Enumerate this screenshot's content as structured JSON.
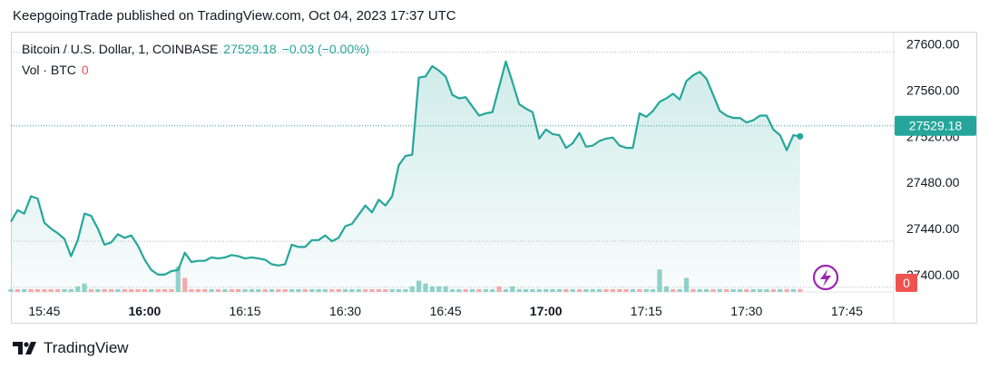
{
  "header": {
    "publisher": "KeepgoingTrade published on TradingView.com, Oct 04, 2023 17:37 UTC"
  },
  "legend": {
    "symbol": "Bitcoin / U.S. Dollar, 1, COINBASE",
    "last": "27529.18",
    "change": "−0.03 (−0.00%)",
    "vol_label": "Vol · BTC",
    "vol_value": "0"
  },
  "footer": {
    "brand": "TradingView"
  },
  "colors": {
    "line": "#26a69a",
    "fill": "#26a69a",
    "vol_up": "#8fd1c9",
    "vol_down": "#f6a9a7",
    "axis_text": "#131722",
    "grid": "#b2b5be"
  },
  "chart_data": {
    "type": "area",
    "ylim": [
      27385,
      27610
    ],
    "yticks": [
      "27600.00",
      "27560.00",
      "27520.00",
      "27480.00",
      "27440.00",
      "27400.00"
    ],
    "ytick_values": [
      27600,
      27560,
      27520,
      27480,
      27440,
      27400
    ],
    "xticks": [
      "15:45",
      "16:00",
      "16:15",
      "16:30",
      "16:45",
      "17:00",
      "17:15",
      "17:30",
      "17:45"
    ],
    "xtick_minutes": [
      945,
      960,
      975,
      990,
      1005,
      1020,
      1035,
      1050,
      1065
    ],
    "bold_xticks": [
      "16:00",
      "17:00"
    ],
    "last_price_label": "27529.18",
    "last_price": 27529.18,
    "volume_label": "0",
    "x_minutes": [
      940,
      941,
      942,
      943,
      944,
      945,
      946,
      947,
      948,
      949,
      950,
      951,
      952,
      953,
      954,
      955,
      956,
      957,
      958,
      959,
      960,
      961,
      962,
      963,
      964,
      965,
      966,
      967,
      968,
      969,
      970,
      971,
      972,
      973,
      974,
      975,
      976,
      977,
      978,
      979,
      980,
      981,
      982,
      983,
      984,
      985,
      986,
      987,
      988,
      989,
      990,
      991,
      992,
      993,
      994,
      995,
      996,
      997,
      998,
      999,
      1000,
      1001,
      1002,
      1003,
      1004,
      1005,
      1006,
      1007,
      1008,
      1009,
      1010,
      1011,
      1012,
      1013,
      1014,
      1015,
      1016,
      1017,
      1018,
      1019,
      1020,
      1021,
      1022,
      1023,
      1024,
      1025,
      1026,
      1027,
      1028,
      1029,
      1030,
      1031,
      1032,
      1033,
      1034,
      1035,
      1036,
      1037,
      1038,
      1039,
      1040,
      1041,
      1042,
      1043,
      1044,
      1045,
      1046,
      1047,
      1048,
      1049,
      1050,
      1051,
      1052,
      1053,
      1054,
      1055,
      1056,
      1057,
      1058
    ],
    "prices": [
      27446,
      27456,
      27453,
      27468,
      27466,
      27445,
      27440,
      27436,
      27431,
      27416,
      27430,
      27453,
      27451,
      27440,
      27426,
      27428,
      27435,
      27432,
      27434,
      27425,
      27413,
      27404,
      27400,
      27400,
      27403,
      27404,
      27419,
      27411,
      27412,
      27412,
      27415,
      27414,
      27415,
      27417,
      27416,
      27414,
      27415,
      27414,
      27413,
      27409,
      27408,
      27409,
      27426,
      27424,
      27424,
      27430,
      27430,
      27434,
      27429,
      27432,
      27442,
      27444,
      27452,
      27460,
      27454,
      27465,
      27460,
      27468,
      27495,
      27503,
      27504,
      27571,
      27572,
      27581,
      27577,
      27572,
      27556,
      27553,
      27554,
      27546,
      27538,
      27540,
      27541,
      27563,
      27585,
      27567,
      27548,
      27544,
      27541,
      27518,
      27526,
      27522,
      27521,
      27510,
      27514,
      27523,
      27511,
      27512,
      27516,
      27518,
      27519,
      27512,
      27510,
      27510,
      27540,
      27537,
      27542,
      27550,
      27553,
      27557,
      27552,
      27568,
      27573,
      27576,
      27570,
      27556,
      27542,
      27538,
      27536,
      27536,
      27532,
      27534,
      27538,
      27538,
      27526,
      27521,
      27508,
      27521,
      27520,
      27522,
      27532,
      27530,
      27529
    ],
    "volume_up": [
      1,
      0,
      1,
      0,
      0,
      0,
      0,
      0,
      1,
      1,
      2,
      3,
      0,
      1,
      0,
      0,
      1,
      0,
      0,
      0,
      0,
      1,
      0,
      0,
      0,
      9,
      0,
      0,
      0,
      0,
      1,
      0,
      1,
      0,
      0,
      1,
      1,
      1,
      0,
      1,
      0,
      0,
      1,
      1,
      0,
      1,
      1,
      1,
      0,
      0,
      1,
      1,
      1,
      0,
      0,
      0,
      0,
      1,
      1,
      1,
      2,
      4,
      3,
      2,
      2,
      2,
      1,
      1,
      0,
      1,
      0,
      1,
      1,
      0,
      1,
      2,
      1,
      1,
      1,
      1,
      1,
      1,
      1,
      0,
      1,
      0,
      1,
      1,
      1,
      0,
      0,
      0,
      0,
      1,
      0,
      1,
      1,
      8,
      2,
      0,
      1,
      5,
      0,
      1,
      1,
      0,
      1,
      0,
      1,
      1,
      0,
      1,
      1,
      1,
      0,
      1,
      0,
      1,
      0,
      0,
      0,
      0,
      0
    ],
    "volume_down": [
      0,
      1,
      0,
      1,
      1,
      1,
      1,
      1,
      0,
      0,
      0,
      0,
      1,
      0,
      1,
      1,
      0,
      1,
      1,
      1,
      1,
      0,
      1,
      1,
      1,
      0,
      5,
      1,
      1,
      1,
      0,
      1,
      0,
      1,
      1,
      0,
      0,
      0,
      1,
      0,
      1,
      1,
      0,
      0,
      1,
      0,
      0,
      0,
      1,
      1,
      0,
      0,
      0,
      1,
      1,
      1,
      1,
      0,
      0,
      0,
      0,
      0,
      0,
      0,
      0,
      0,
      3,
      2,
      1,
      0,
      1,
      0,
      0,
      2,
      0,
      0,
      0,
      0,
      0,
      0,
      0,
      0,
      0,
      1,
      0,
      1,
      0,
      0,
      0,
      1,
      1,
      1,
      1,
      0,
      1,
      0,
      0,
      0,
      0,
      1,
      0,
      0,
      1,
      0,
      0,
      1,
      0,
      1,
      0,
      0,
      1,
      0,
      0,
      0,
      1,
      0,
      1,
      0,
      1,
      1,
      1,
      1,
      1
    ]
  }
}
